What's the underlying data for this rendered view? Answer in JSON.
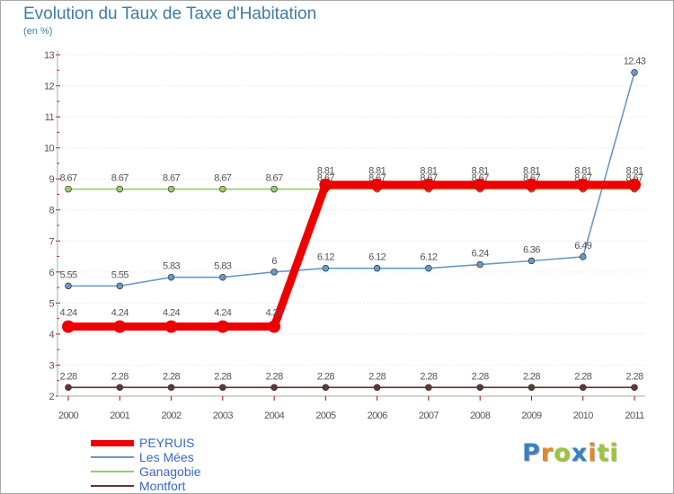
{
  "chart_data": {
    "type": "line",
    "title": "Evolution du Taux de Taxe d'Habitation",
    "subtitle": "(en %)",
    "xlabel": "",
    "ylabel": "",
    "ylim": [
      2,
      13
    ],
    "yticks": [
      "2",
      "3",
      "4",
      "5",
      "6",
      "7",
      "8",
      "9",
      "10",
      "11",
      "12",
      "13"
    ],
    "categories": [
      "2000",
      "2001",
      "2002",
      "2003",
      "2004",
      "2005",
      "2006",
      "2007",
      "2008",
      "2009",
      "2010",
      "2011"
    ],
    "series": [
      {
        "name": "Ganagobie",
        "color": "#99cc66",
        "values": [
          8.67,
          8.67,
          8.67,
          8.67,
          8.67,
          8.67,
          8.67,
          8.67,
          8.67,
          8.67,
          8.67,
          8.67
        ],
        "labels": [
          "8.67",
          "8.67",
          "8.67",
          "8.67",
          "8.67",
          "8.67",
          "8.67",
          "8.67",
          "8.67",
          "8.67",
          "8.67",
          "8.67"
        ]
      },
      {
        "name": "Les Mées",
        "color": "#6699cc",
        "values": [
          5.55,
          5.55,
          5.83,
          5.83,
          6,
          6.12,
          6.12,
          6.12,
          6.24,
          6.36,
          6.49,
          12.43
        ],
        "labels": [
          "5.55",
          "5.55",
          "5.83",
          "5.83",
          "6",
          "6.12",
          "6.12",
          "6.12",
          "6.24",
          "6.36",
          "6.49",
          "12.43"
        ]
      },
      {
        "name": "Montfort",
        "color": "#663333",
        "values": [
          2.28,
          2.28,
          2.28,
          2.28,
          2.28,
          2.28,
          2.28,
          2.28,
          2.28,
          2.28,
          2.28,
          2.28
        ],
        "labels": [
          "2.28",
          "2.28",
          "2.28",
          "2.28",
          "2.28",
          "2.28",
          "2.28",
          "2.28",
          "2.28",
          "2.28",
          "2.28",
          "2.28"
        ]
      },
      {
        "name": "PEYRUIS",
        "color": "#ee0000",
        "values": [
          4.24,
          4.24,
          4.24,
          4.24,
          4.24,
          8.81,
          8.81,
          8.81,
          8.81,
          8.81,
          8.81,
          8.81
        ],
        "labels": [
          "4.24",
          "4.24",
          "4.24",
          "4.24",
          "4.24",
          "8.81",
          "8.81",
          "8.81",
          "8.81",
          "8.81",
          "8.81",
          "8.81"
        ]
      }
    ],
    "legend": [
      "PEYRUIS",
      "Les Mées",
      "Ganagobie",
      "Montfort"
    ],
    "legend_position": "bottom-left"
  },
  "logo": {
    "letters": [
      "P",
      "r",
      "o",
      "x",
      "i",
      "t",
      "i"
    ],
    "colors": [
      "#3a7fc4",
      "#e0892c",
      "#9bc53d",
      "#3a7fc4",
      "#e0892c",
      "#9bc53d",
      "#9bc53d"
    ]
  }
}
